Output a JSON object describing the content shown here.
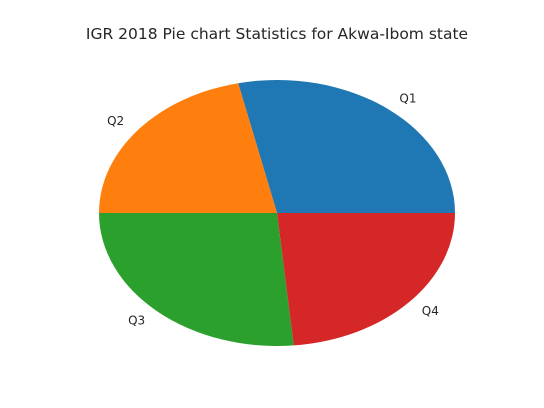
{
  "chart_data": {
    "type": "pie",
    "title": "IGR 2018 Pie chart Statistics for Akwa-Ibom state",
    "categories": [
      "Q1",
      "Q2",
      "Q3",
      "Q4"
    ],
    "values": [
      28.5,
      21.5,
      26.5,
      23.5
    ],
    "colors": [
      "#1f77b4",
      "#ff7f0e",
      "#2ca02c",
      "#d62728"
    ],
    "start_angle_deg": 0,
    "direction": "counterclockwise"
  }
}
